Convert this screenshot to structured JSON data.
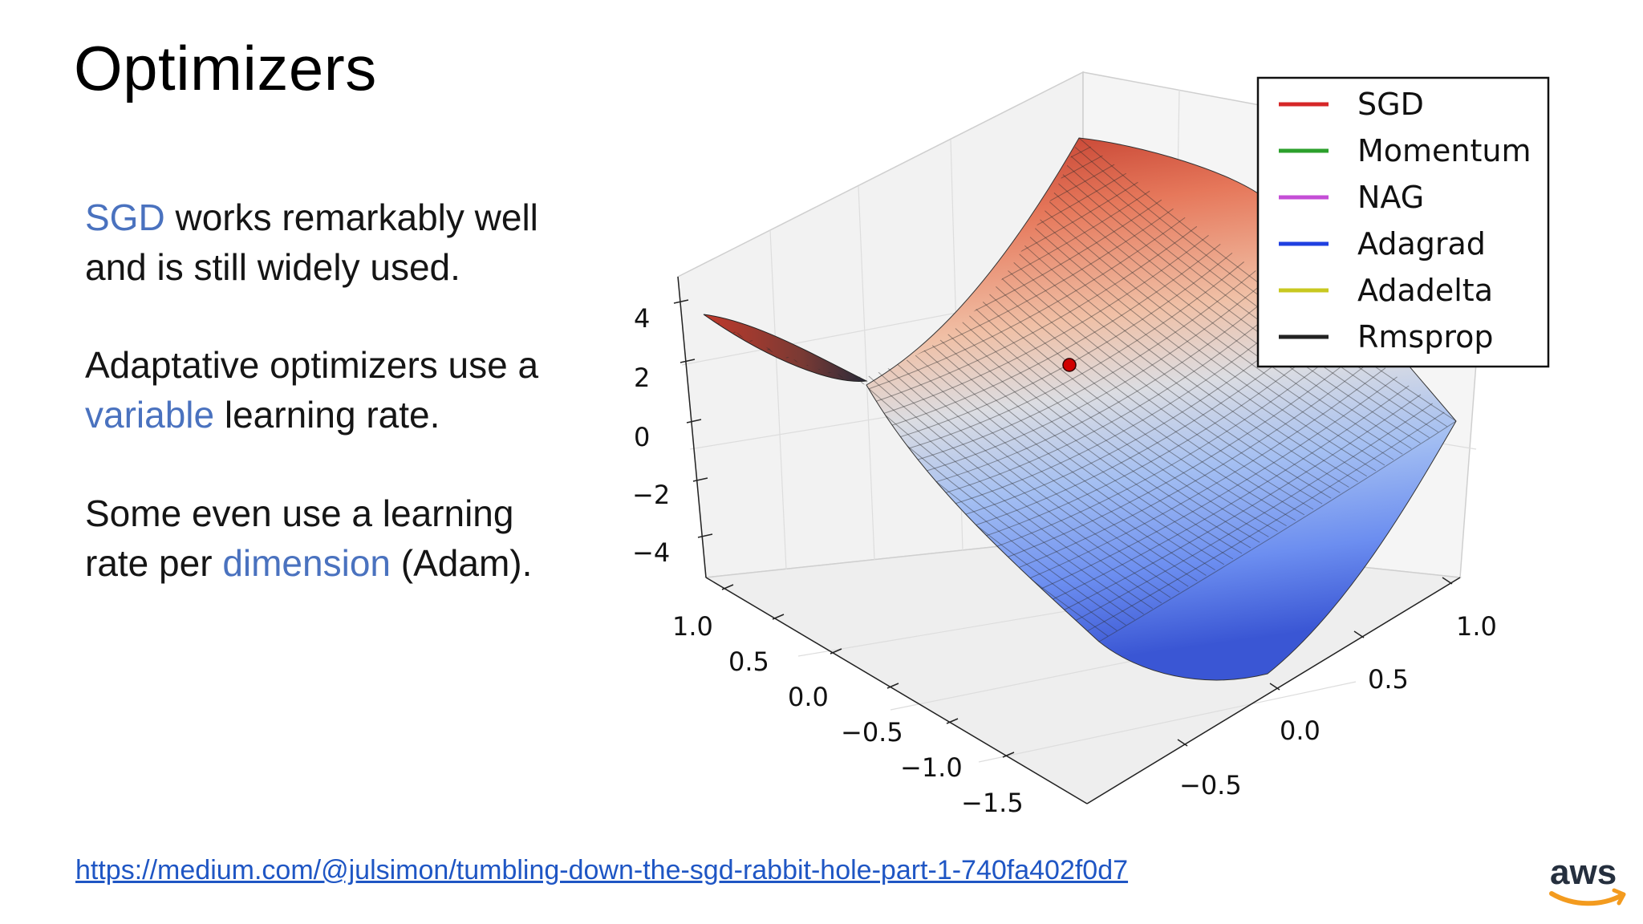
{
  "slide": {
    "title": "Optimizers",
    "paragraphs": {
      "p1": {
        "hl": "SGD",
        "rest1": " works remarkably well",
        "line2": "and is still widely used."
      },
      "p2": {
        "line1": "Adaptative optimizers use a",
        "hl": "variable",
        "rest2": " learning rate."
      },
      "p3": {
        "line1": "Some even use a learning",
        "pre": "rate per ",
        "hl": "dimension",
        "post": " (Adam)."
      }
    },
    "link": "https://medium.com/@julsimon/tumbling-down-the-sgd-rabbit-hole-part-1-740fa402f0d7",
    "logo_text": "aws",
    "colors": {
      "highlight": "#4a72bf",
      "link": "#1f56c4",
      "aws_orange": "#f39b1f"
    }
  },
  "chart_data": {
    "type": "surface3d",
    "function": "z = x^2 - y^2 (saddle)",
    "legend": [
      {
        "name": "SGD",
        "color": "#d62728"
      },
      {
        "name": "Momentum",
        "color": "#2ca02c"
      },
      {
        "name": "NAG",
        "color": "#c44ed6"
      },
      {
        "name": "Adagrad",
        "color": "#2040e0"
      },
      {
        "name": "Adadelta",
        "color": "#c8c820"
      },
      {
        "name": "Rmsprop",
        "color": "#222222"
      }
    ],
    "legend_position": "top-right",
    "z_ticks": [
      "4",
      "2",
      "0",
      "−2",
      "−4"
    ],
    "x_ticks": [
      "1.0",
      "0.5",
      "0.0",
      "−0.5",
      "−1.0",
      "−1.5"
    ],
    "y_ticks": [
      "1.0",
      "0.5",
      "0.0",
      "−0.5"
    ],
    "start_point": {
      "x": 0.7,
      "y": 0.0,
      "color": "#d00000"
    },
    "colormap": "coolwarm",
    "grid": true
  }
}
